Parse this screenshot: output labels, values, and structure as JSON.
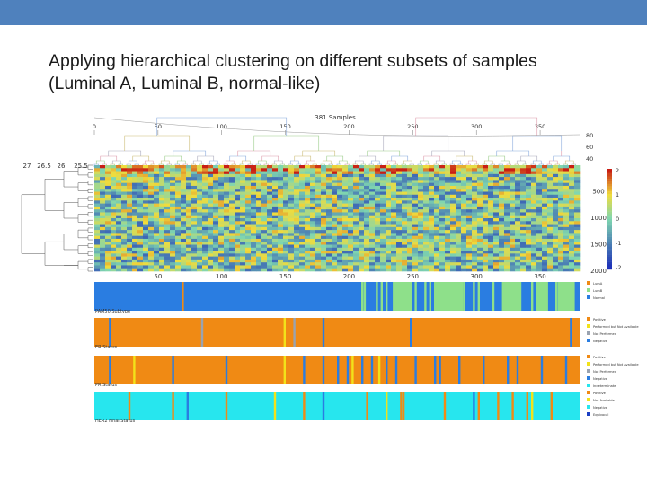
{
  "slide": {
    "title_line1": "Applying hierarchical clustering on different subsets of samples",
    "title_line2": "(Luminal A, Luminal B, normal-like)"
  },
  "figure": {
    "header": "381 Samples",
    "top_axis_ticks": [
      "0",
      "50",
      "100",
      "150",
      "200",
      "250",
      "300",
      "350"
    ],
    "bottom_axis_ticks": [
      "50",
      "100",
      "150",
      "200",
      "250",
      "300",
      "350"
    ],
    "dendro_height_ticks": [
      "27",
      "26.5",
      "26",
      "25.5"
    ],
    "top_dendro_height_ticks": [
      "80",
      "60",
      "40"
    ],
    "gene_axis_ticks": [
      "500",
      "1000",
      "1500",
      "2000"
    ],
    "colorbar_ticks": [
      "2",
      "1",
      "0",
      "-1",
      "-2"
    ],
    "colors": {
      "heat_low": "#1a2cb8",
      "heat_mid": "#7fd6b0",
      "heat_high": "#c81e14",
      "blue": "#2a7de1",
      "light_green": "#8ee08a",
      "orange": "#f08a14",
      "cyan": "#27e6ee",
      "yellow": "#f2e21a",
      "dark_blue": "#1b3fc4",
      "gray": "#9aa3b0"
    },
    "annotation_tracks": [
      {
        "label": "PAM50 Subtype",
        "legend": [
          "LumA",
          "LumB",
          "Normal"
        ],
        "legend_colors": [
          "#f08a14",
          "#8ee08a",
          "#2a7de1"
        ],
        "background": "blue",
        "stripes": [
          {
            "at": 0.18,
            "color": "orange"
          },
          {
            "at": 0.55,
            "color": "light_green"
          },
          {
            "at": 0.555,
            "color": "light_green"
          },
          {
            "at": 0.58,
            "color": "light_green"
          },
          {
            "at": 0.59,
            "color": "light_green"
          },
          {
            "at": 0.6,
            "color": "light_green"
          },
          {
            "at": 0.62,
            "color": "light_green"
          },
          {
            "at": 0.64,
            "color": "light_green"
          },
          {
            "at": 0.645,
            "color": "light_green"
          },
          {
            "at": 0.66,
            "color": "light_green"
          },
          {
            "at": 0.68,
            "color": "light_green"
          },
          {
            "at": 0.69,
            "color": "light_green"
          },
          {
            "at": 0.7,
            "color": "light_green"
          },
          {
            "at": 0.72,
            "color": "light_green"
          },
          {
            "at": 0.735,
            "color": "light_green"
          },
          {
            "at": 0.76,
            "color": "light_green"
          },
          {
            "at": 0.78,
            "color": "light_green"
          },
          {
            "at": 0.79,
            "color": "light_green"
          },
          {
            "at": 0.82,
            "color": "light_green"
          },
          {
            "at": 0.85,
            "color": "light_green"
          },
          {
            "at": 0.87,
            "color": "light_green"
          },
          {
            "at": 0.9,
            "color": "light_green"
          },
          {
            "at": 0.92,
            "color": "light_green"
          },
          {
            "at": 0.95,
            "color": "light_green"
          },
          {
            "at": 0.97,
            "color": "light_green"
          }
        ],
        "blocks": [
          {
            "from": 0.615,
            "to": 0.655,
            "color": "light_green"
          },
          {
            "from": 0.7,
            "to": 0.76,
            "color": "light_green"
          },
          {
            "from": 0.84,
            "to": 0.88,
            "color": "light_green"
          },
          {
            "from": 0.91,
            "to": 0.935,
            "color": "light_green"
          },
          {
            "from": 0.955,
            "to": 0.99,
            "color": "light_green"
          }
        ]
      },
      {
        "label": "ER Status",
        "legend": [
          "Positive",
          "Performed but Not Available",
          "Not Performed",
          "Negative"
        ],
        "legend_colors": [
          "#f08a14",
          "#f2e21a",
          "#9aa3b0",
          "#2a7de1"
        ],
        "background": "orange",
        "stripes": [
          {
            "at": 0.03,
            "color": "blue"
          },
          {
            "at": 0.22,
            "color": "gray"
          },
          {
            "at": 0.39,
            "color": "yellow"
          },
          {
            "at": 0.41,
            "color": "gray"
          },
          {
            "at": 0.47,
            "color": "blue"
          },
          {
            "at": 0.65,
            "color": "blue"
          },
          {
            "at": 0.98,
            "color": "blue"
          }
        ],
        "blocks": []
      },
      {
        "label": "PR Status",
        "legend": [
          "Positive",
          "Performed but Not Available",
          "Not Performed",
          "Negative",
          "Indeterminate"
        ],
        "legend_colors": [
          "#f08a14",
          "#f2e21a",
          "#9aa3b0",
          "#2a7de1",
          "#27e6ee"
        ],
        "background": "orange",
        "stripes": [
          {
            "at": 0.03,
            "color": "blue"
          },
          {
            "at": 0.08,
            "color": "yellow"
          },
          {
            "at": 0.16,
            "color": "blue"
          },
          {
            "at": 0.27,
            "color": "blue"
          },
          {
            "at": 0.39,
            "color": "yellow"
          },
          {
            "at": 0.43,
            "color": "blue"
          },
          {
            "at": 0.47,
            "color": "blue"
          },
          {
            "at": 0.5,
            "color": "blue"
          },
          {
            "at": 0.52,
            "color": "blue"
          },
          {
            "at": 0.53,
            "color": "yellow"
          },
          {
            "at": 0.55,
            "color": "blue"
          },
          {
            "at": 0.57,
            "color": "blue"
          },
          {
            "at": 0.585,
            "color": "yellow"
          },
          {
            "at": 0.6,
            "color": "blue"
          },
          {
            "at": 0.62,
            "color": "blue"
          },
          {
            "at": 0.66,
            "color": "blue"
          },
          {
            "at": 0.7,
            "color": "blue"
          },
          {
            "at": 0.71,
            "color": "blue"
          },
          {
            "at": 0.75,
            "color": "blue"
          },
          {
            "at": 0.8,
            "color": "blue"
          },
          {
            "at": 0.85,
            "color": "blue"
          },
          {
            "at": 0.87,
            "color": "blue"
          },
          {
            "at": 0.92,
            "color": "blue"
          },
          {
            "at": 0.97,
            "color": "blue"
          }
        ],
        "blocks": []
      },
      {
        "label": "HER2 Final Status",
        "legend": [
          "Positive",
          "Not Available",
          "Negative",
          "Equivocal"
        ],
        "legend_colors": [
          "#f08a14",
          "#f2e21a",
          "#27e6ee",
          "#1b3fc4"
        ],
        "background": "cyan",
        "stripes": [
          {
            "at": 0.07,
            "color": "orange"
          },
          {
            "at": 0.16,
            "color": "orange"
          },
          {
            "at": 0.19,
            "color": "blue"
          },
          {
            "at": 0.27,
            "color": "orange"
          },
          {
            "at": 0.37,
            "color": "yellow"
          },
          {
            "at": 0.43,
            "color": "orange"
          },
          {
            "at": 0.47,
            "color": "blue"
          },
          {
            "at": 0.56,
            "color": "orange"
          },
          {
            "at": 0.6,
            "color": "yellow"
          },
          {
            "at": 0.63,
            "color": "orange"
          },
          {
            "at": 0.635,
            "color": "orange"
          },
          {
            "at": 0.72,
            "color": "orange"
          },
          {
            "at": 0.78,
            "color": "blue"
          },
          {
            "at": 0.79,
            "color": "orange"
          },
          {
            "at": 0.83,
            "color": "orange"
          },
          {
            "at": 0.86,
            "color": "orange"
          },
          {
            "at": 0.89,
            "color": "orange"
          },
          {
            "at": 0.9,
            "color": "yellow"
          },
          {
            "at": 0.94,
            "color": "orange"
          }
        ],
        "blocks": []
      }
    ]
  }
}
